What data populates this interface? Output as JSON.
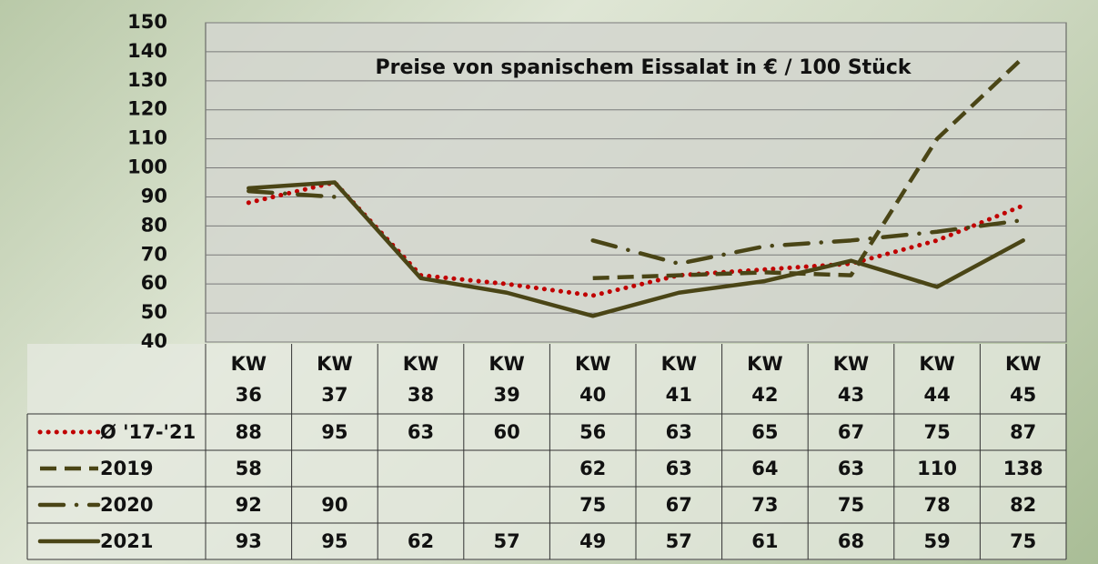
{
  "chart_data": {
    "type": "line",
    "title": "Preise von spanischem Eissalat in € / 100 Stück",
    "categories": [
      "KW 36",
      "KW 37",
      "KW 38",
      "KW 39",
      "KW 40",
      "KW 41",
      "KW 42",
      "KW 43",
      "KW 44",
      "KW 45"
    ],
    "series": [
      {
        "name": "Ø '17-'21",
        "color": "#c00000",
        "linestyle": "dotted",
        "values": [
          88,
          95,
          63,
          60,
          56,
          63,
          65,
          67,
          75,
          87
        ]
      },
      {
        "name": "2019",
        "color": "#4a4516",
        "linestyle": "dashed",
        "values": [
          58,
          null,
          null,
          null,
          62,
          63,
          64,
          63,
          110,
          138
        ]
      },
      {
        "name": "2020",
        "color": "#4a4516",
        "linestyle": "dashdot",
        "values": [
          92,
          90,
          null,
          null,
          75,
          67,
          73,
          75,
          78,
          82
        ]
      },
      {
        "name": "2021",
        "color": "#4a4516",
        "linestyle": "solid",
        "values": [
          93,
          95,
          62,
          57,
          49,
          57,
          61,
          68,
          59,
          75
        ]
      }
    ],
    "ylim": [
      40,
      150
    ],
    "yticks": [
      40,
      50,
      60,
      70,
      80,
      90,
      100,
      110,
      120,
      130,
      140,
      150
    ],
    "grid": true
  }
}
